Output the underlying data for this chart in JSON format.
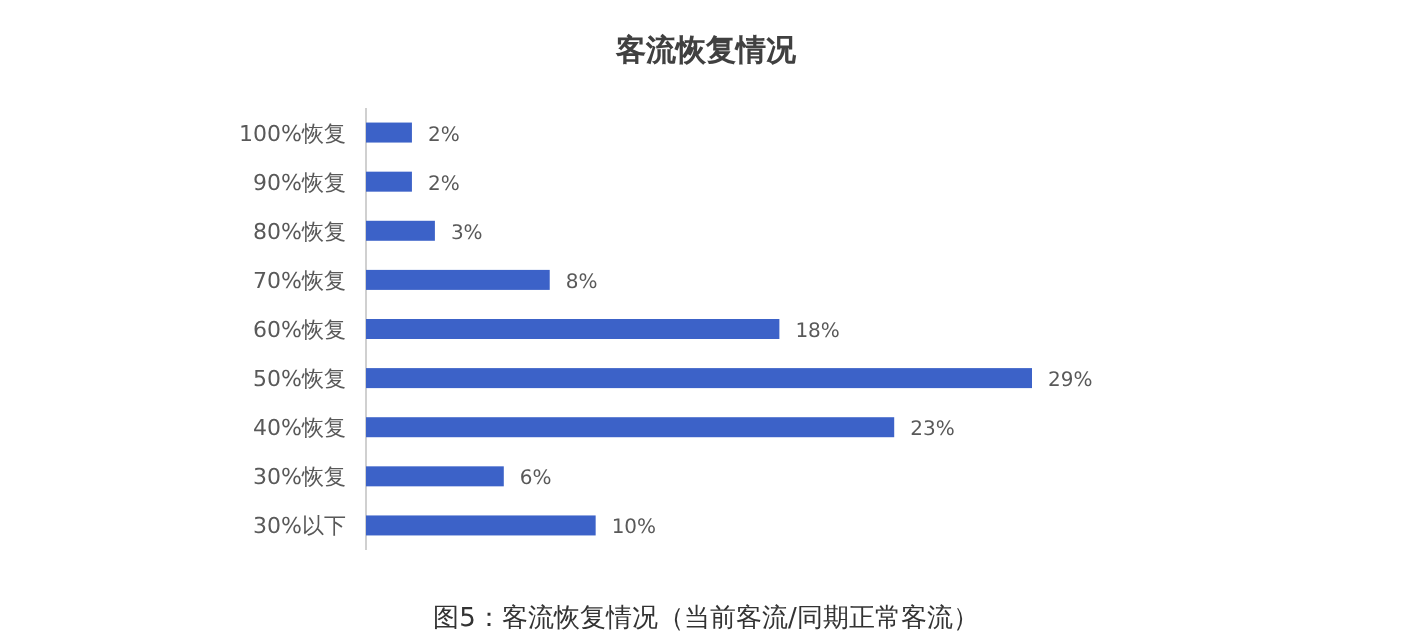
{
  "chart_data": {
    "type": "bar",
    "orientation": "horizontal",
    "title": "客流恢复情况",
    "categories": [
      "100%恢复",
      "90%恢复",
      "80%恢复",
      "70%恢复",
      "60%恢复",
      "50%恢复",
      "40%恢复",
      "30%恢复",
      "30%以下"
    ],
    "values": [
      2,
      2,
      3,
      8,
      18,
      29,
      23,
      6,
      10
    ],
    "value_labels": [
      "2%",
      "2%",
      "3%",
      "8%",
      "18%",
      "29%",
      "23%",
      "6%",
      "10%"
    ],
    "color": "#3c62c8",
    "annotations": [
      "图5：客流恢复情况（当前客流/同期正常客流）"
    ]
  }
}
